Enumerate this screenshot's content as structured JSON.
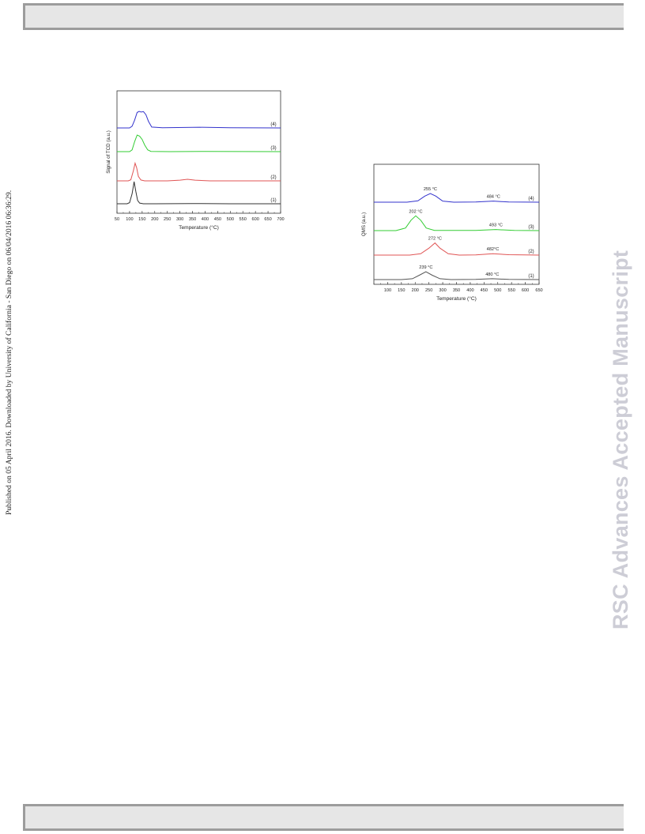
{
  "side_note": "Published on 05 April 2016. Downloaded by University of California - San Diego on 06/04/2016 06:36:29.",
  "watermark": "RSC Advances Accepted Manuscript",
  "chart_data": [
    {
      "type": "line",
      "title": "",
      "xlabel": "Temperature (°C)",
      "ylabel": "Signal of TCD (a.u.)",
      "xlim": [
        50,
        700
      ],
      "xticks": [
        50,
        100,
        150,
        200,
        250,
        300,
        350,
        400,
        450,
        500,
        550,
        600,
        650,
        700
      ],
      "grid": false,
      "series": [
        {
          "name": "(1)",
          "color": "#333333",
          "offset": 0,
          "x": [
            50,
            90,
            100,
            110,
            118,
            125,
            132,
            140,
            155,
            200,
            350,
            500,
            700
          ],
          "y": [
            0,
            0,
            0.05,
            0.45,
            1.0,
            0.55,
            0.15,
            0.03,
            0,
            0,
            0.01,
            0,
            0
          ]
        },
        {
          "name": "(2)",
          "color": "#e05555",
          "offset": 1,
          "x": [
            50,
            95,
            105,
            115,
            122,
            128,
            135,
            145,
            160,
            250,
            300,
            330,
            360,
            420,
            700
          ],
          "y": [
            0,
            0,
            0.05,
            0.45,
            0.8,
            0.6,
            0.2,
            0.04,
            0,
            0,
            0.03,
            0.07,
            0.03,
            0,
            0
          ]
        },
        {
          "name": "(3)",
          "color": "#33cc33",
          "offset": 2,
          "x": [
            50,
            100,
            110,
            120,
            130,
            140,
            150,
            160,
            172,
            185,
            260,
            400,
            700
          ],
          "y": [
            0,
            0,
            0.08,
            0.45,
            0.75,
            0.7,
            0.55,
            0.3,
            0.08,
            0.01,
            0,
            0.01,
            0
          ]
        },
        {
          "name": "(4)",
          "color": "#3333cc",
          "offset": 3,
          "x": [
            50,
            100,
            110,
            120,
            130,
            138,
            146,
            155,
            165,
            175,
            188,
            230,
            380,
            500,
            700
          ],
          "y": [
            0,
            0,
            0.08,
            0.35,
            0.7,
            0.75,
            0.72,
            0.74,
            0.6,
            0.3,
            0.04,
            0.01,
            0.03,
            0.01,
            0
          ]
        }
      ]
    },
    {
      "type": "line",
      "title": "",
      "xlabel": "Temperature (°C)",
      "ylabel": "QMS (a.u.)",
      "xlim": [
        50,
        650
      ],
      "xticks": [
        100,
        150,
        200,
        250,
        300,
        350,
        400,
        450,
        500,
        550,
        600,
        650
      ],
      "grid": false,
      "series": [
        {
          "name": "(1)",
          "color": "#555555",
          "offset": 0,
          "x": [
            50,
            150,
            190,
            215,
            239,
            262,
            290,
            330,
            420,
            480,
            540,
            650
          ],
          "y": [
            0,
            0,
            0.05,
            0.25,
            0.45,
            0.25,
            0.05,
            0,
            0.01,
            0.05,
            0.01,
            0
          ]
        },
        {
          "name": "(2)",
          "color": "#e05555",
          "offset": 1,
          "x": [
            50,
            180,
            220,
            250,
            272,
            290,
            320,
            360,
            420,
            482,
            540,
            650
          ],
          "y": [
            0,
            0,
            0.08,
            0.4,
            0.7,
            0.4,
            0.08,
            0,
            0.01,
            0.08,
            0.02,
            0
          ]
        },
        {
          "name": "(3)",
          "color": "#33cc33",
          "offset": 2,
          "x": [
            50,
            130,
            165,
            185,
            202,
            220,
            240,
            270,
            420,
            493,
            560,
            650
          ],
          "y": [
            0,
            0,
            0.15,
            0.6,
            0.85,
            0.6,
            0.15,
            0.01,
            0.01,
            0.06,
            0.01,
            0
          ]
        },
        {
          "name": "(4)",
          "color": "#3333cc",
          "offset": 3,
          "x": [
            50,
            170,
            210,
            235,
            255,
            275,
            300,
            340,
            420,
            484,
            540,
            650
          ],
          "y": [
            0,
            0,
            0.08,
            0.35,
            0.5,
            0.35,
            0.06,
            0,
            0.01,
            0.06,
            0.01,
            0
          ]
        }
      ],
      "annotations": [
        {
          "text": "255 °C",
          "x": 255,
          "series": 3
        },
        {
          "text": "484 °C",
          "x": 484,
          "series": 3
        },
        {
          "text": "202 °C",
          "x": 202,
          "series": 2
        },
        {
          "text": "493 °C",
          "x": 493,
          "series": 2
        },
        {
          "text": "272 °C",
          "x": 272,
          "series": 1
        },
        {
          "text": "482°C",
          "x": 482,
          "series": 1
        },
        {
          "text": "239 °C",
          "x": 239,
          "series": 0
        },
        {
          "text": "480 °C",
          "x": 480,
          "series": 0
        }
      ]
    }
  ]
}
